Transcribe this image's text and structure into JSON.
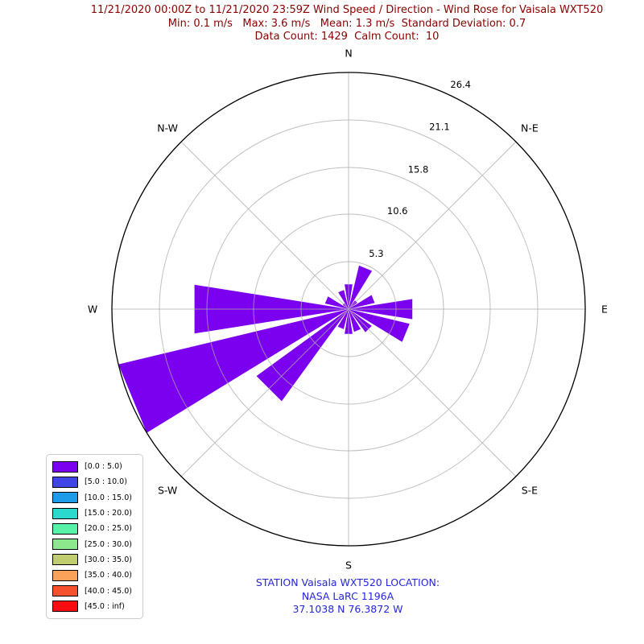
{
  "title": {
    "line1": "11/21/2020 00:00Z to 11/21/2020 23:59Z Wind Speed / Direction - Wind Rose for Vaisala WXT520",
    "line2": "Min: 0.1 m/s   Max: 3.6 m/s   Mean: 1.3 m/s  Standard Deviation: 0.7",
    "line3": "Data Count: 1429  Calm Count:  10",
    "color": "#8B0000"
  },
  "caption": {
    "line1": "STATION Vaisala WXT520 LOCATION:",
    "line2": "NASA LaRC 1196A",
    "line3": "37.1038 N 76.3872 W",
    "color": "#2626D8"
  },
  "chart_data": {
    "type": "windrose-polar-bar",
    "directions": [
      "N",
      "NNE",
      "NE",
      "ENE",
      "E",
      "ESE",
      "SE",
      "SSE",
      "S",
      "SSW",
      "SW",
      "WSW",
      "W",
      "WNW",
      "NW",
      "NNW"
    ],
    "values": [
      2.8,
      5.0,
      1.2,
      3.0,
      7.2,
      7.0,
      3.2,
      2.6,
      2.8,
      2.3,
      12.7,
      26.4,
      17.4,
      2.7,
      0.8,
      2.2
    ],
    "units": "percent of observations (radial axis)",
    "bar_color": "#7B00F0",
    "bar_bin_label": "[0.0 : 5.0)",
    "rmax": 26.4,
    "radial_ticks": [
      "5.3",
      "10.6",
      "15.8",
      "21.1",
      "26.4"
    ],
    "compass_labels": [
      "N",
      "N-E",
      "E",
      "S-E",
      "S",
      "S-W",
      "W",
      "N-W"
    ],
    "grid_color": "#ababab",
    "boundary_color": "#000000",
    "legend_position": "bottom-left",
    "speed_bins": [
      {
        "label": "[0.0 : 5.0)",
        "color": "#7B00F0"
      },
      {
        "label": "[5.0 : 10.0)",
        "color": "#4145E6"
      },
      {
        "label": "[10.0 : 15.0)",
        "color": "#1E9BE9"
      },
      {
        "label": "[15.0 : 20.0)",
        "color": "#2BD9CD"
      },
      {
        "label": "[20.0 : 25.0)",
        "color": "#57F1A8"
      },
      {
        "label": "[25.0 : 30.0)",
        "color": "#8DE78D"
      },
      {
        "label": "[30.0 : 35.0)",
        "color": "#C0CE70"
      },
      {
        "label": "[35.0 : 40.0)",
        "color": "#FAA25A"
      },
      {
        "label": "[40.0 : 45.0)",
        "color": "#F5512F"
      },
      {
        "label": "[45.0 : inf)",
        "color": "#F90D10"
      }
    ]
  }
}
